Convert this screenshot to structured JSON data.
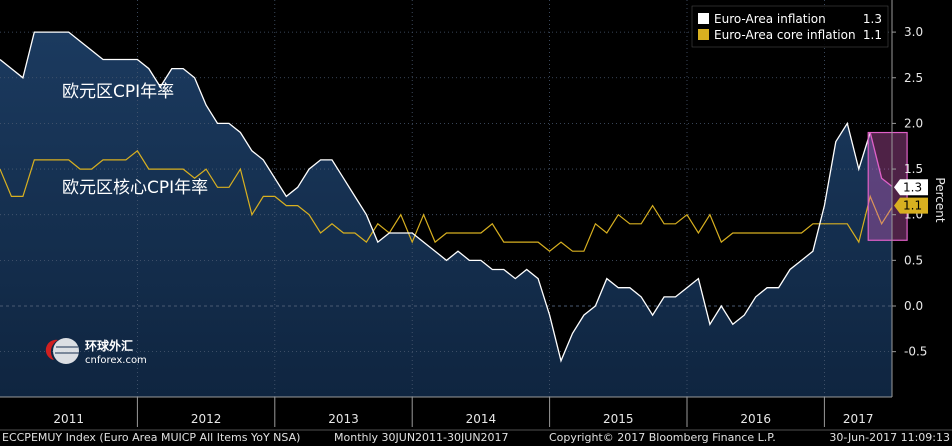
{
  "chart_data": {
    "type": "area",
    "title": "",
    "xlabel": "",
    "ylabel": "Percent",
    "x_start": "2011-01",
    "x_end": "2017-05",
    "ylim": [
      -0.95,
      3.35
    ],
    "y_ticks": [
      3.0,
      2.5,
      2.0,
      1.5,
      1.0,
      0.5,
      0.0,
      -0.5
    ],
    "y_tick_labels": [
      "3.0",
      "2.5",
      "2.0",
      "1.5",
      "1.0",
      "0.5",
      "0.0",
      "-0.5"
    ],
    "x_year_labels": [
      "2011",
      "2012",
      "2013",
      "2014",
      "2015",
      "2016",
      "2017"
    ],
    "grid": true,
    "legend_position": "top-right",
    "series": [
      {
        "name": "Euro-Area inflation",
        "last_value": "1.3",
        "color": "#ffffff",
        "values": [
          2.7,
          2.6,
          2.5,
          3.0,
          3.0,
          3.0,
          3.0,
          2.9,
          2.8,
          2.7,
          2.7,
          2.7,
          2.7,
          2.6,
          2.4,
          2.6,
          2.6,
          2.5,
          2.2,
          2.0,
          2.0,
          1.9,
          1.7,
          1.6,
          1.4,
          1.2,
          1.3,
          1.5,
          1.6,
          1.6,
          1.4,
          1.2,
          1.0,
          0.7,
          0.8,
          0.8,
          0.8,
          0.7,
          0.6,
          0.5,
          0.6,
          0.5,
          0.5,
          0.4,
          0.4,
          0.3,
          0.4,
          0.3,
          -0.1,
          -0.6,
          -0.3,
          -0.1,
          0.0,
          0.3,
          0.2,
          0.2,
          0.1,
          -0.1,
          0.1,
          0.1,
          0.2,
          0.3,
          -0.2,
          0.0,
          -0.2,
          -0.1,
          0.1,
          0.2,
          0.2,
          0.4,
          0.5,
          0.6,
          1.1,
          1.8,
          2.0,
          1.5,
          1.9,
          1.4,
          1.3
        ],
        "highlight": {
          "from": "2017-03",
          "to": "2017-05",
          "color": "#e060c8"
        }
      },
      {
        "name": "Euro-Area core inflation",
        "last_value": "1.1",
        "color": "#d8b020",
        "values": [
          1.5,
          1.2,
          1.2,
          1.6,
          1.6,
          1.6,
          1.6,
          1.5,
          1.5,
          1.6,
          1.6,
          1.6,
          1.7,
          1.5,
          1.5,
          1.5,
          1.5,
          1.4,
          1.5,
          1.3,
          1.3,
          1.5,
          1.0,
          1.2,
          1.2,
          1.1,
          1.1,
          1.0,
          0.8,
          0.9,
          0.8,
          0.8,
          0.7,
          0.9,
          0.8,
          1.0,
          0.7,
          1.0,
          0.7,
          0.8,
          0.8,
          0.8,
          0.8,
          0.9,
          0.7,
          0.7,
          0.7,
          0.7,
          0.6,
          0.7,
          0.6,
          0.6,
          0.9,
          0.8,
          1.0,
          0.9,
          0.9,
          1.1,
          0.9,
          0.9,
          1.0,
          0.8,
          1.0,
          0.7,
          0.8,
          0.8,
          0.8,
          0.8,
          0.8,
          0.8,
          0.8,
          0.9,
          0.9,
          0.9,
          0.9,
          0.7,
          1.2,
          0.9,
          1.1
        ]
      }
    ],
    "annotations": [
      "欧元区CPI年率",
      "欧元区核心CPI年率"
    ],
    "watermark": {
      "cn": "环球外汇",
      "en": "cnforex.com"
    }
  },
  "footer": {
    "ticker": "ECCPEMUY Index (Euro Area MUICP All Items YoY NSA)",
    "period": "Monthly 30JUN2011-30JUN2017",
    "copyright": "Copyright© 2017 Bloomberg Finance L.P.",
    "timestamp": "30-Jun-2017 11:09:13"
  },
  "colors": {
    "background": "#000000",
    "area_fill": "#16304f",
    "grid": "#4a5a72",
    "core_line": "#d8b020",
    "highlight_box": "#e060c8"
  }
}
